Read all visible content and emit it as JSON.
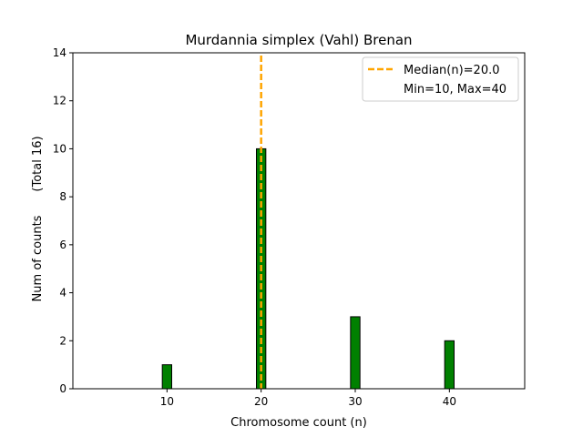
{
  "chart_data": {
    "type": "bar",
    "title": "Murdannia simplex (Vahl) Brenan",
    "xlabel": "Chromosome count (n)",
    "ylabel": "Num of counts",
    "ylabel_note": "(Total 16)",
    "x": [
      10,
      20,
      30,
      40
    ],
    "values": [
      1,
      10,
      3,
      2
    ],
    "xlim": [
      0,
      48
    ],
    "ylim": [
      0,
      14
    ],
    "xticks": [
      10,
      20,
      30,
      40
    ],
    "yticks": [
      0,
      2,
      4,
      6,
      8,
      10,
      12,
      14
    ],
    "bar_color": "#008000",
    "bar_edge_color": "#000000",
    "grid": false,
    "median": {
      "value": 20.0,
      "label": "Median(n)=20.0",
      "color": "#FFA500"
    },
    "legend": {
      "placement": "top-right",
      "entries": [
        "Median(n)=20.0",
        "Min=10, Max=40"
      ]
    }
  }
}
